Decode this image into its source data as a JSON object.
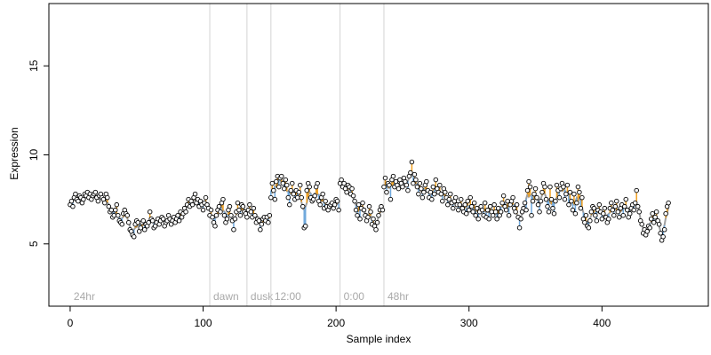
{
  "chart_data": {
    "type": "scatter",
    "xlabel": "Sample index",
    "ylabel": "Expression",
    "xlim": [
      -16,
      480
    ],
    "ylim": [
      1.5,
      18.5
    ],
    "x_ticks": [
      0,
      100,
      200,
      300,
      400
    ],
    "y_ticks": [
      5,
      10,
      15
    ],
    "grid": false,
    "legend": "none",
    "colors": {
      "points_fill": "#ffffff",
      "points_stroke": "#000000",
      "line_grey": "#a0a0a0",
      "line_orange": "#f0a020",
      "line_blue": "#6fa8dc",
      "markers": "#d3d3d3",
      "marker_text": "#a9a9a9"
    },
    "markers": [
      {
        "x": 0,
        "label": "24hr"
      },
      {
        "x": 105,
        "label": "dawn"
      },
      {
        "x": 133,
        "label": "dusk"
      },
      {
        "x": 151,
        "label": "12:00"
      },
      {
        "x": 203,
        "label": "0:00"
      },
      {
        "x": 236,
        "label": "48hr"
      }
    ],
    "series": [
      {
        "segments": [
          {
            "x0": 0,
            "y": [
              7.2,
              7.4,
              7.1,
              7.6,
              7.8,
              7.5,
              7.4,
              7.7,
              7.6,
              7.3,
              7.5,
              7.8,
              7.7,
              7.9,
              7.6,
              7.8,
              7.5,
              7.7,
              7.8,
              7.9,
              7.6,
              7.4,
              7.7,
              7.8,
              7.6,
              7.5,
              7.3,
              7.8,
              7.6,
              7.1,
              6.8,
              6.9,
              6.5,
              6.6,
              6.9,
              7.2,
              6.6,
              6.3,
              6.2,
              6.1,
              6.7,
              6.9,
              6.7,
              6.6,
              6.2,
              5.8,
              5.7,
              5.5,
              5.4,
              6.1,
              6.3,
              6.2,
              5.7,
              5.9,
              6.2,
              6.3,
              5.8,
              6.1,
              6.0,
              6.2,
              6.8,
              6.4,
              6.3,
              5.9,
              6.0,
              6.2,
              6.4,
              6.1,
              6.3,
              6.5,
              6.4,
              6.0,
              6.2,
              6.3,
              6.6,
              6.4,
              6.1,
              6.3,
              6.5,
              6.2,
              6.4,
              6.6,
              6.3,
              6.8,
              6.5,
              6.7,
              7.0,
              6.8,
              7.2,
              7.5,
              7.1,
              7.4,
              7.2,
              7.6,
              7.8,
              7.3,
              7.5,
              7.1,
              7.4,
              7.2,
              6.9,
              7.3,
              7.6,
              7.2,
              7.0
            ]
          },
          {
            "x0": 105,
            "y": [
              6.6,
              6.9,
              6.5,
              6.2,
              6.0,
              6.6,
              6.9,
              7.1,
              6.8,
              7.3,
              7.5,
              6.6,
              6.2,
              6.4,
              6.9,
              7.1,
              6.6,
              6.3,
              5.8,
              6.4,
              6.8,
              7.3,
              6.9,
              6.6,
              7.2,
              7.1,
              6.8,
              6.7
            ]
          },
          {
            "x0": 133,
            "y": [
              6.5,
              6.9,
              7.2,
              6.8,
              6.5,
              7.0,
              6.6,
              6.2,
              6.4,
              6.3,
              5.8,
              6.1,
              6.4,
              6.5,
              6.3,
              6.5,
              6.2,
              6.6
            ]
          },
          {
            "x0": 151,
            "y": [
              7.6,
              8.4,
              8.0,
              7.5,
              8.5,
              8.8,
              8.2,
              8.7,
              8.8,
              8.4,
              8.1,
              8.6,
              8.3,
              7.6,
              7.2,
              8.0,
              8.4,
              7.8,
              7.5,
              8.0,
              7.6,
              7.9,
              8.3,
              7.6,
              7.1,
              5.9,
              6.0,
              8.0,
              8.4,
              8.2,
              7.6,
              7.4,
              7.5,
              7.7,
              8.2,
              8.4,
              7.4,
              7.2,
              7.6,
              7.8,
              7.0,
              7.4,
              7.1,
              6.9,
              7.1,
              7.2,
              7.3,
              7.0,
              7.2,
              7.5,
              7.4,
              6.9
            ]
          },
          {
            "x0": 203,
            "y": [
              8.4,
              8.6,
              8.2,
              8.4,
              8.1,
              7.9,
              8.3,
              8.2,
              7.8,
              8.1,
              7.7,
              7.4,
              6.9,
              6.6,
              7.2,
              6.4,
              7.0,
              7.3,
              6.9,
              6.6,
              6.3,
              6.5,
              7.1,
              6.8,
              6.1,
              6.4,
              6.0,
              5.8,
              6.2,
              6.6,
              6.9,
              7.1,
              6.9
            ]
          },
          {
            "x0": 236,
            "y": [
              8.2,
              8.7,
              7.9,
              8.4,
              8.3,
              7.5,
              8.6,
              8.8,
              8.2,
              8.5,
              8.3,
              8.1,
              8.6,
              8.4,
              8.2,
              8.7,
              8.5,
              8.3,
              8.0,
              8.8,
              9.0,
              9.6,
              8.4,
              8.9,
              8.6,
              8.2,
              7.8,
              8.4,
              8.1,
              7.6,
              7.9,
              8.3,
              8.5,
              8.0,
              7.6,
              7.9,
              7.5,
              8.2,
              7.8,
              8.6,
              8.1,
              7.9,
              8.3,
              7.8,
              7.4,
              8.1,
              7.9,
              7.6,
              7.2,
              7.5,
              7.8,
              7.3,
              7.0,
              7.4,
              7.6,
              7.2,
              6.9,
              7.2,
              7.5,
              7.0,
              6.8,
              7.2,
              6.7,
              7.4,
              6.9,
              7.6,
              7.1,
              6.8,
              7.3,
              6.6,
              7.0,
              6.4,
              6.8,
              7.1,
              6.9,
              6.6,
              7.3,
              6.5,
              6.9,
              6.4,
              7.1,
              6.8,
              6.6,
              7.2,
              6.8,
              6.4,
              7.0,
              6.6,
              6.8,
              7.3,
              7.7,
              7.1,
              6.9,
              7.4,
              6.6,
              7.2,
              7.4,
              7.6,
              7.0,
              6.8,
              7.2,
              6.5,
              5.9,
              6.4,
              6.8,
              7.0,
              7.3,
              6.9,
              8.0,
              8.5,
              8.2,
              6.6,
              7.4,
              7.8,
              8.1,
              7.6,
              7.2,
              6.8,
              7.4,
              7.9,
              8.4,
              8.2,
              7.5,
              7.1,
              6.8,
              8.2,
              7.5,
              7.0,
              6.7,
              7.4,
              8.3,
              8.0,
              7.6,
              8.1,
              8.4,
              8.2,
              7.5,
              7.8,
              8.3,
              7.2,
              7.9,
              7.4,
              6.9,
              7.8,
              6.7,
              7.3,
              8.2,
              7.9,
              7.0,
              7.6,
              6.4,
              6.2,
              6.6,
              6.0,
              5.9,
              6.3,
              6.8,
              7.1,
              7.0,
              6.6,
              6.3,
              6.9,
              7.2,
              6.8,
              6.4,
              6.7,
              7.0,
              6.5,
              6.2,
              6.4,
              7.0,
              7.3,
              6.9,
              6.6,
              7.1,
              7.4,
              6.8,
              6.5,
              7.0,
              7.2,
              6.6,
              7.1,
              7.5,
              6.9,
              6.5,
              6.7,
              7.0,
              7.2,
              6.9,
              7.3,
              8.0,
              7.1,
              6.8,
              6.3,
              6.1,
              5.6,
              5.8,
              5.5,
              5.7,
              6.0,
              5.9,
              6.4,
              6.7,
              6.2,
              6.5,
              6.8,
              6.3,
              6.1,
              5.6,
              5.2,
              5.4,
              5.8,
              6.7,
              7.1,
              7.3
            ]
          }
        ]
      }
    ]
  }
}
